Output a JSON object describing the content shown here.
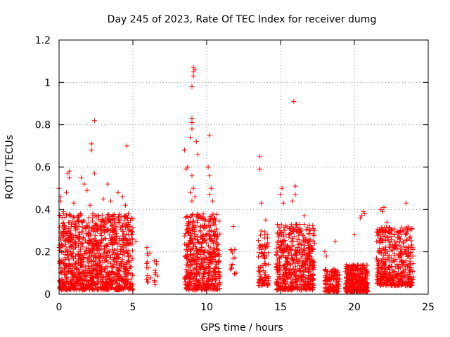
{
  "chart_data": {
    "type": "scatter",
    "title": "Day 245 of 2023, Rate Of TEC Index for receiver dumg",
    "xlabel": "GPS time / hours",
    "ylabel": "ROTI / TECUs",
    "xlim": [
      0,
      25
    ],
    "ylim": [
      0,
      1.2
    ],
    "xticks": [
      0,
      5,
      10,
      15,
      20,
      25
    ],
    "xtick_labels": [
      "0",
      "5",
      "10",
      "15",
      "20",
      "25"
    ],
    "yticks": [
      0,
      0.2,
      0.4,
      0.6,
      0.8,
      1.0,
      1.2
    ],
    "ytick_labels": [
      "0",
      "0.2",
      "0.4",
      "0.6",
      "0.8",
      "1",
      "1.2"
    ],
    "grid": true,
    "marker": "plus",
    "color": "#ff0000",
    "clusters": [
      {
        "x": [
          0.0,
          5.0
        ],
        "ymin": 0.02,
        "ymax": 0.38,
        "count": 1100
      },
      {
        "x": [
          5.9,
          6.2
        ],
        "ymin": 0.05,
        "ymax": 0.22,
        "count": 14
      },
      {
        "x": [
          6.4,
          6.7
        ],
        "ymin": 0.04,
        "ymax": 0.16,
        "count": 10
      },
      {
        "x": [
          8.5,
          10.9
        ],
        "ymin": 0.02,
        "ymax": 0.38,
        "count": 520
      },
      {
        "x": [
          11.6,
          12.0
        ],
        "ymin": 0.08,
        "ymax": 0.24,
        "count": 12
      },
      {
        "x": [
          13.5,
          14.2
        ],
        "ymin": 0.04,
        "ymax": 0.3,
        "count": 90
      },
      {
        "x": [
          14.7,
          17.3
        ],
        "ymin": 0.02,
        "ymax": 0.33,
        "count": 520
      },
      {
        "x": [
          18.0,
          19.0
        ],
        "ymin": 0.01,
        "ymax": 0.12,
        "count": 130
      },
      {
        "x": [
          19.4,
          20.9
        ],
        "ymin": 0.01,
        "ymax": 0.14,
        "count": 330
      },
      {
        "x": [
          21.5,
          24.0
        ],
        "ymin": 0.04,
        "ymax": 0.32,
        "count": 420
      }
    ],
    "points": [
      [
        0.0,
        0.5
      ],
      [
        0.1,
        0.46
      ],
      [
        0.1,
        0.44
      ],
      [
        0.3,
        0.39
      ],
      [
        0.5,
        0.48
      ],
      [
        0.6,
        0.57
      ],
      [
        0.7,
        0.58
      ],
      [
        0.7,
        0.55
      ],
      [
        1.0,
        0.43
      ],
      [
        1.5,
        0.55
      ],
      [
        1.7,
        0.52
      ],
      [
        1.9,
        0.49
      ],
      [
        2.1,
        0.42
      ],
      [
        2.2,
        0.71
      ],
      [
        2.2,
        0.68
      ],
      [
        2.4,
        0.82
      ],
      [
        2.4,
        0.57
      ],
      [
        3.0,
        0.45
      ],
      [
        3.3,
        0.52
      ],
      [
        3.5,
        0.44
      ],
      [
        4.0,
        0.48
      ],
      [
        4.3,
        0.46
      ],
      [
        4.5,
        0.42
      ],
      [
        4.6,
        0.7
      ],
      [
        4.9,
        0.36
      ],
      [
        5.2,
        0.25
      ],
      [
        8.5,
        0.68
      ],
      [
        8.6,
        0.59
      ],
      [
        8.7,
        0.6
      ],
      [
        8.9,
        0.74
      ],
      [
        9.0,
        0.78
      ],
      [
        9.0,
        0.83
      ],
      [
        9.0,
        0.81
      ],
      [
        9.1,
        1.07
      ],
      [
        9.1,
        1.05
      ],
      [
        9.2,
        1.06
      ],
      [
        9.1,
        1.03
      ],
      [
        9.0,
        0.98
      ],
      [
        9.3,
        0.72
      ],
      [
        9.4,
        0.66
      ],
      [
        9.0,
        0.56
      ],
      [
        9.1,
        0.5
      ],
      [
        8.9,
        0.48
      ],
      [
        9.2,
        0.46
      ],
      [
        9.0,
        0.44
      ],
      [
        10.2,
        0.75
      ],
      [
        10.1,
        0.6
      ],
      [
        10.2,
        0.56
      ],
      [
        10.3,
        0.5
      ],
      [
        10.2,
        0.47
      ],
      [
        10.4,
        0.44
      ],
      [
        10.5,
        0.36
      ],
      [
        11.8,
        0.32
      ],
      [
        12.0,
        0.1
      ],
      [
        11.9,
        0.21
      ],
      [
        13.6,
        0.65
      ],
      [
        13.6,
        0.59
      ],
      [
        13.7,
        0.43
      ],
      [
        14.0,
        0.35
      ],
      [
        15.1,
        0.5
      ],
      [
        15.0,
        0.47
      ],
      [
        15.2,
        0.43
      ],
      [
        15.9,
        0.91
      ],
      [
        16.0,
        0.51
      ],
      [
        16.0,
        0.47
      ],
      [
        15.8,
        0.44
      ],
      [
        16.3,
        0.33
      ],
      [
        16.6,
        0.37
      ],
      [
        17.0,
        0.26
      ],
      [
        17.3,
        0.24
      ],
      [
        18.0,
        0.2
      ],
      [
        18.1,
        0.18
      ],
      [
        18.7,
        0.25
      ],
      [
        20.0,
        0.28
      ],
      [
        20.4,
        0.36
      ],
      [
        20.5,
        0.37
      ],
      [
        20.6,
        0.39
      ],
      [
        20.7,
        0.38
      ],
      [
        21.8,
        0.4
      ],
      [
        22.0,
        0.41
      ],
      [
        21.9,
        0.39
      ],
      [
        22.2,
        0.34
      ],
      [
        22.5,
        0.3
      ],
      [
        23.0,
        0.29
      ],
      [
        23.2,
        0.28
      ],
      [
        23.5,
        0.43
      ],
      [
        23.9,
        0.31
      ],
      [
        23.8,
        0.27
      ],
      [
        24.0,
        0.08
      ]
    ]
  }
}
